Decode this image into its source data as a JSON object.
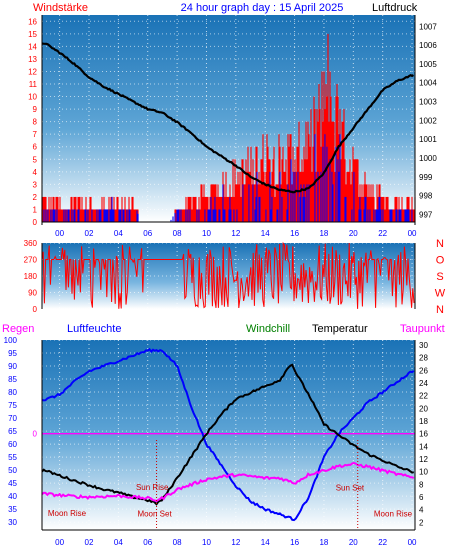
{
  "colors": {
    "wind_speed": "#ff0000",
    "wind_gust_blue": "#0000ff",
    "pressure": "#000000",
    "temperature": "#000000",
    "humidity": "#0000ff",
    "dewpoint": "#ff00ff",
    "regen_label": "#ff00ff",
    "windchill_label": "#008000",
    "axis_blue": "#0000ff",
    "axis_red": "#ff0000",
    "annotation": "#cc0000",
    "plot_top": "#1f7bbd",
    "plot_bottom": "#ffffff"
  },
  "chart_data": [
    {
      "type": "bar",
      "title": "24 hour graph day : 15 April 2025",
      "left_label": "Windstärke",
      "right_label": "Luftdruck",
      "x_ticks": [
        "00",
        "02",
        "04",
        "06",
        "08",
        "10",
        "12",
        "14",
        "16",
        "18",
        "20",
        "22",
        "00"
      ],
      "y_left_ticks": [
        "0",
        "1",
        "2",
        "3",
        "4",
        "5",
        "6",
        "7",
        "8",
        "9",
        "10",
        "11",
        "12",
        "13",
        "14",
        "15",
        "16"
      ],
      "y_right_ticks": [
        "997",
        "998",
        "999",
        "1000",
        "1001",
        "1002",
        "1003",
        "1004",
        "1005",
        "1006",
        "1007"
      ],
      "ylim_left": [
        0,
        16.5
      ],
      "ylim_right": [
        996.6,
        1007.6
      ],
      "wind_red_profile": [
        [
          23.0,
          2
        ],
        [
          23.5,
          2
        ],
        [
          0.0,
          2
        ],
        [
          0.5,
          2
        ],
        [
          1.0,
          2
        ],
        [
          1.5,
          2
        ],
        [
          2.0,
          2
        ],
        [
          2.5,
          1
        ],
        [
          3.0,
          2
        ],
        [
          3.5,
          2
        ],
        [
          4.0,
          2
        ],
        [
          4.5,
          2
        ],
        [
          5.0,
          2
        ],
        [
          5.5,
          0
        ],
        [
          6.0,
          0
        ],
        [
          6.5,
          0
        ],
        [
          7.0,
          0
        ],
        [
          7.5,
          0
        ],
        [
          8.0,
          1
        ],
        [
          8.5,
          2
        ],
        [
          9.0,
          2
        ],
        [
          9.5,
          3
        ],
        [
          10.0,
          3
        ],
        [
          10.5,
          3
        ],
        [
          11.0,
          4
        ],
        [
          11.5,
          4
        ],
        [
          12.0,
          5
        ],
        [
          12.5,
          6
        ],
        [
          13.0,
          6
        ],
        [
          13.5,
          7
        ],
        [
          14.0,
          7
        ],
        [
          14.5,
          7
        ],
        [
          15.0,
          7
        ],
        [
          15.5,
          8
        ],
        [
          16.0,
          7
        ],
        [
          16.5,
          8
        ],
        [
          17.0,
          9
        ],
        [
          17.5,
          10
        ],
        [
          18.0,
          13
        ],
        [
          18.3,
          16
        ],
        [
          18.6,
          12
        ],
        [
          19.0,
          11
        ],
        [
          19.5,
          8
        ],
        [
          20.0,
          6
        ],
        [
          20.5,
          5
        ],
        [
          21.0,
          4
        ],
        [
          21.5,
          3
        ],
        [
          22.0,
          3
        ],
        [
          22.5,
          2
        ],
        [
          23.0,
          2
        ]
      ],
      "pressure_profile": [
        [
          -1,
          1006.1
        ],
        [
          0,
          1005.6
        ],
        [
          1,
          1005.0
        ],
        [
          2,
          1004.3
        ],
        [
          3,
          1003.8
        ],
        [
          4,
          1003.4
        ],
        [
          5,
          1003.0
        ],
        [
          6,
          1002.6
        ],
        [
          7,
          1002.4
        ],
        [
          8,
          1001.9
        ],
        [
          9,
          1001.3
        ],
        [
          10,
          1000.6
        ],
        [
          11,
          1000.1
        ],
        [
          12,
          999.6
        ],
        [
          13,
          999.0
        ],
        [
          14,
          998.6
        ],
        [
          15,
          998.3
        ],
        [
          16,
          998.2
        ],
        [
          17,
          998.4
        ],
        [
          18,
          999.2
        ],
        [
          19,
          1000.6
        ],
        [
          20,
          1001.6
        ],
        [
          21,
          1002.6
        ],
        [
          22,
          1003.6
        ],
        [
          23,
          1004.1
        ],
        [
          24,
          1004.4
        ]
      ]
    },
    {
      "type": "scatter",
      "title": "",
      "x_ticks": [
        "00",
        "02",
        "04",
        "06",
        "08",
        "10",
        "12",
        "14",
        "16",
        "18",
        "20",
        "22",
        "00"
      ],
      "y_left_ticks": [
        "0",
        "90",
        "180",
        "270",
        "360"
      ],
      "y_right_ticks": [
        "N",
        "O",
        "S",
        "W",
        "N"
      ],
      "ylim": [
        0,
        360
      ],
      "direction_note": "wind direction in degrees"
    },
    {
      "type": "line",
      "labels": {
        "regen": "Regen",
        "luftfeuchte": "Luftfeuchte",
        "windchill": "Windchill",
        "temperatur": "Temperatur",
        "taupunkt": "Taupunkt"
      },
      "x_ticks": [
        "00",
        "02",
        "04",
        "06",
        "08",
        "10",
        "12",
        "14",
        "16",
        "18",
        "20",
        "22",
        "00"
      ],
      "y_left_ticks": [
        "30",
        "35",
        "40",
        "45",
        "50",
        "55",
        "60",
        "65",
        "70",
        "75",
        "80",
        "85",
        "90",
        "95",
        "100"
      ],
      "y_right_ticks": [
        "2",
        "4",
        "6",
        "8",
        "10",
        "12",
        "14",
        "16",
        "18",
        "20",
        "22",
        "24",
        "26",
        "28",
        "30"
      ],
      "ylim_left": [
        27,
        100
      ],
      "ylim_right": [
        0.8,
        30.8
      ],
      "rain_zero_label": "0",
      "rain_line_value": 16,
      "annotations": [
        {
          "text": "Moon Rise",
          "x": -0.8,
          "y": 3
        },
        {
          "text": "Sun Rise",
          "x": 5.2,
          "y": 7.1
        },
        {
          "text": "Moon Set",
          "x": 5.3,
          "y": 2.9
        },
        {
          "text": "Sun Set",
          "x": 18.8,
          "y": 7.0
        },
        {
          "text": "Moon Rise",
          "x": 21.4,
          "y": 2.9
        }
      ],
      "series": [
        {
          "name": "Luftfeuchte",
          "axis": "left",
          "values": [
            [
              -1,
              77
            ],
            [
              0,
              79
            ],
            [
              1,
              84
            ],
            [
              2,
              88
            ],
            [
              3,
              90
            ],
            [
              4,
              92
            ],
            [
              5,
              94
            ],
            [
              6,
              96
            ],
            [
              7,
              96
            ],
            [
              8,
              90
            ],
            [
              9,
              74
            ],
            [
              10,
              60
            ],
            [
              11,
              52
            ],
            [
              12,
              44
            ],
            [
              13,
              38
            ],
            [
              14,
              35
            ],
            [
              15,
              33
            ],
            [
              16,
              31
            ],
            [
              17,
              40
            ],
            [
              18,
              55
            ],
            [
              19,
              64
            ],
            [
              20,
              70
            ],
            [
              21,
              76
            ],
            [
              22,
              80
            ],
            [
              23,
              84
            ],
            [
              24,
              88
            ]
          ]
        },
        {
          "name": "Temperatur",
          "axis": "right",
          "values": [
            [
              -1,
              10.2
            ],
            [
              0,
              9.4
            ],
            [
              1,
              8.6
            ],
            [
              2,
              7.9
            ],
            [
              3,
              7.2
            ],
            [
              4,
              6.7
            ],
            [
              5,
              6.0
            ],
            [
              6,
              5.5
            ],
            [
              6.6,
              5.0
            ],
            [
              7,
              5.6
            ],
            [
              8,
              9.0
            ],
            [
              9,
              12.5
            ],
            [
              10,
              16.0
            ],
            [
              11,
              19.0
            ],
            [
              12,
              21.5
            ],
            [
              13,
              22.5
            ],
            [
              14,
              23.5
            ],
            [
              15,
              24.5
            ],
            [
              15.8,
              27.2
            ],
            [
              16,
              26.0
            ],
            [
              17,
              22.0
            ],
            [
              18,
              17.5
            ],
            [
              19,
              15.8
            ],
            [
              20,
              14.2
            ],
            [
              21,
              12.8
            ],
            [
              22,
              11.8
            ],
            [
              23,
              10.8
            ],
            [
              24,
              10.0
            ]
          ]
        },
        {
          "name": "Taupunkt",
          "axis": "right",
          "values": [
            [
              -1,
              6.5
            ],
            [
              0,
              6.3
            ],
            [
              1,
              6.1
            ],
            [
              2,
              6.0
            ],
            [
              3,
              6.1
            ],
            [
              4,
              6.2
            ],
            [
              5,
              6.0
            ],
            [
              6,
              5.8
            ],
            [
              6.6,
              5.5
            ],
            [
              7,
              5.8
            ],
            [
              8,
              7.2
            ],
            [
              9,
              8.0
            ],
            [
              10,
              8.8
            ],
            [
              11,
              9.2
            ],
            [
              12,
              9.5
            ],
            [
              13,
              9.3
            ],
            [
              14,
              9.0
            ],
            [
              15,
              9.0
            ],
            [
              16,
              8.2
            ],
            [
              17,
              9.6
            ],
            [
              18,
              10.2
            ],
            [
              19,
              10.9
            ],
            [
              20,
              11.2
            ],
            [
              21,
              10.8
            ],
            [
              22,
              10.2
            ],
            [
              23,
              9.6
            ],
            [
              24,
              9.1
            ]
          ]
        }
      ]
    }
  ]
}
